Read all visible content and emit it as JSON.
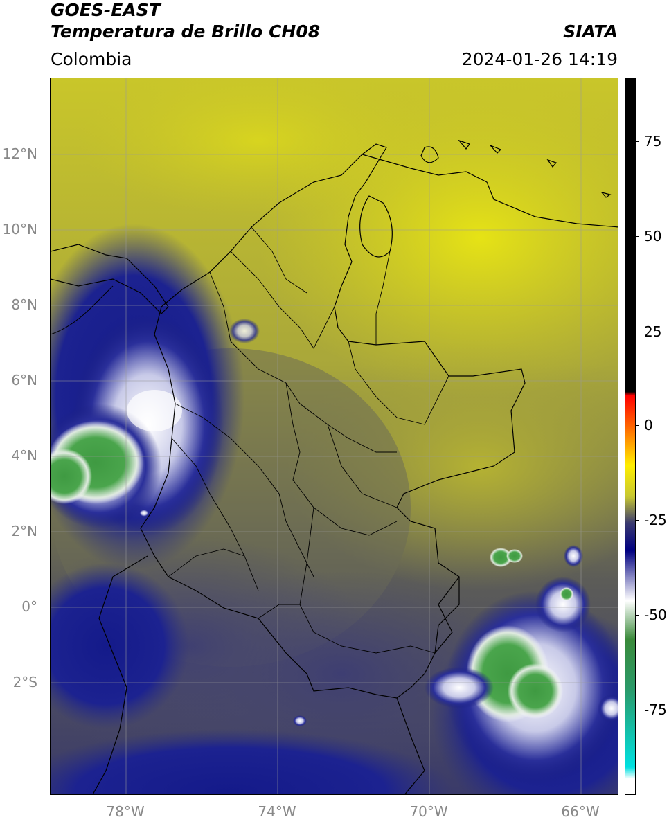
{
  "header": {
    "title_line1": "GOES-EAST",
    "title_line2": "Temperatura de Brillo CH08",
    "region": "Colombia",
    "brand": "SIATA",
    "datetime": "2024-01-26 14:19"
  },
  "map": {
    "lat_labels": [
      "12°N",
      "10°N",
      "8°N",
      "6°N",
      "4°N",
      "2°N",
      "0°",
      "2°S"
    ],
    "lat_values": [
      12,
      10,
      8,
      6,
      4,
      2,
      0,
      -2
    ],
    "lon_labels": [
      "78°W",
      "74°W",
      "70°W",
      "66°W"
    ],
    "lon_values": [
      -78,
      -74,
      -70,
      -66
    ],
    "extent": {
      "lon_min": -80,
      "lon_max": -65,
      "lat_min": -5,
      "lat_max": 14
    }
  },
  "colorbar": {
    "labels": [
      "75",
      "50",
      "25",
      "0",
      "-25",
      "-50",
      "-75"
    ],
    "values": [
      75,
      50,
      25,
      0,
      -25,
      -50,
      -75
    ],
    "range": [
      -95,
      90
    ],
    "stops": [
      {
        "value": 90,
        "color": "#000000"
      },
      {
        "value": 9,
        "color": "#000000"
      },
      {
        "value": 8,
        "color": "#ff0000"
      },
      {
        "value": 0,
        "color": "#ff6600"
      },
      {
        "value": -10,
        "color": "#ffee00"
      },
      {
        "value": -18,
        "color": "#c8c830"
      },
      {
        "value": -25,
        "color": "#3a3a70"
      },
      {
        "value": -32,
        "color": "#000080"
      },
      {
        "value": -45,
        "color": "#ffffff"
      },
      {
        "value": -55,
        "color": "#3a8a3a"
      },
      {
        "value": -68,
        "color": "#2a9a6a"
      },
      {
        "value": -88,
        "color": "#00e0e0"
      },
      {
        "value": -91,
        "color": "#ffffff"
      },
      {
        "value": -95,
        "color": "#ffffff"
      }
    ]
  },
  "colors": {
    "warm_land": "#b9b52c",
    "warm_north": "#d4d020",
    "mid_olive": "#6a6a4a",
    "cool_slate": "#4a4a6e",
    "cold_navy": "#141a8a",
    "cloud_white": "#eef0f8",
    "cloud_green": "#3f9a42"
  }
}
